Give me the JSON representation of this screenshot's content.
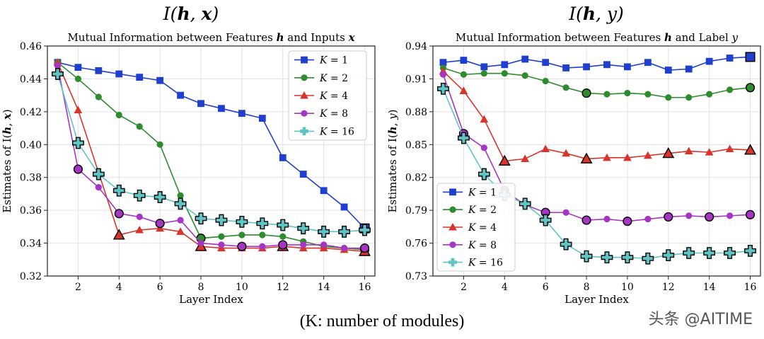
{
  "caption": "(K: number of modules)",
  "watermark": "头条 @AITIME",
  "colors": {
    "K1": "#1f3fcf",
    "K2": "#2e8b2e",
    "K4": "#d9342b",
    "K8": "#a735c4",
    "K16": "#5fc4c4"
  },
  "chart_data": [
    {
      "type": "line",
      "supertitle": "I(h, x)",
      "title": "Mutual Information between Features h and Inputs x",
      "xlabel": "Layer Index",
      "ylabel": "Estimates of I(h, x)",
      "x": [
        1,
        2,
        3,
        4,
        5,
        6,
        7,
        8,
        9,
        10,
        11,
        12,
        13,
        14,
        15,
        16
      ],
      "xticks": [
        2,
        4,
        6,
        8,
        10,
        12,
        14,
        16
      ],
      "xlim": [
        0.5,
        16.5
      ],
      "ylim": [
        0.32,
        0.46
      ],
      "yticks": [
        "0.32",
        "0.34",
        "0.36",
        "0.38",
        "0.40",
        "0.42",
        "0.44",
        "0.46"
      ],
      "grid": true,
      "legend_position": "top-right",
      "series": [
        {
          "name": "K = 1",
          "color_key": "K1",
          "marker": "square",
          "values": [
            0.45,
            0.447,
            0.445,
            0.443,
            0.441,
            0.439,
            0.43,
            0.425,
            0.422,
            0.419,
            0.416,
            0.392,
            0.382,
            0.372,
            0.362,
            0.349
          ],
          "highlight": [
            16
          ]
        },
        {
          "name": "K = 2",
          "color_key": "K2",
          "marker": "circle",
          "values": [
            0.45,
            0.44,
            0.429,
            0.418,
            0.411,
            0.4,
            0.369,
            0.343,
            0.344,
            0.345,
            0.345,
            0.344,
            0.341,
            0.338,
            0.337,
            0.336
          ],
          "highlight": [
            8,
            16
          ]
        },
        {
          "name": "K = 4",
          "color_key": "K4",
          "marker": "triangle",
          "values": [
            0.45,
            0.421,
            0.383,
            0.345,
            0.348,
            0.349,
            0.347,
            0.338,
            0.337,
            0.337,
            0.337,
            0.338,
            0.337,
            0.337,
            0.336,
            0.335
          ],
          "highlight": [
            4,
            8,
            12,
            16
          ]
        },
        {
          "name": "K = 8",
          "color_key": "K8",
          "marker": "circle",
          "values": [
            0.448,
            0.385,
            0.374,
            0.358,
            0.356,
            0.352,
            0.354,
            0.34,
            0.339,
            0.338,
            0.338,
            0.339,
            0.339,
            0.339,
            0.337,
            0.337
          ],
          "highlight": [
            2,
            4,
            6,
            10,
            12,
            16
          ]
        },
        {
          "name": "K = 16",
          "color_key": "K16",
          "marker": "plus",
          "values": [
            0.443,
            0.401,
            0.382,
            0.372,
            0.369,
            0.368,
            0.364,
            0.355,
            0.354,
            0.353,
            0.352,
            0.351,
            0.349,
            0.347,
            0.347,
            0.348
          ],
          "highlight": [
            1,
            2,
            3,
            4,
            5,
            6,
            7,
            8,
            9,
            10,
            11,
            12,
            13,
            14,
            15,
            16
          ]
        }
      ]
    },
    {
      "type": "line",
      "supertitle": "I(h, y)",
      "title": "Mutual Information between Features h and Label y",
      "xlabel": "Layer Index",
      "ylabel": "Estimates of I(h, y)",
      "x": [
        1,
        2,
        3,
        4,
        5,
        6,
        7,
        8,
        9,
        10,
        11,
        12,
        13,
        14,
        15,
        16
      ],
      "xticks": [
        2,
        4,
        6,
        8,
        10,
        12,
        14,
        16
      ],
      "xlim": [
        0.5,
        16.5
      ],
      "ylim": [
        0.73,
        0.94
      ],
      "yticks": [
        "0.73",
        "0.76",
        "0.79",
        "0.82",
        "0.85",
        "0.88",
        "0.91",
        "0.94"
      ],
      "grid": true,
      "legend_position": "bottom-left",
      "series": [
        {
          "name": "K = 1",
          "color_key": "K1",
          "marker": "square",
          "values": [
            0.925,
            0.927,
            0.921,
            0.923,
            0.928,
            0.925,
            0.92,
            0.921,
            0.923,
            0.921,
            0.925,
            0.918,
            0.919,
            0.926,
            0.929,
            0.93
          ],
          "highlight": [
            16
          ]
        },
        {
          "name": "K = 2",
          "color_key": "K2",
          "marker": "circle",
          "values": [
            0.92,
            0.914,
            0.915,
            0.915,
            0.913,
            0.908,
            0.902,
            0.897,
            0.896,
            0.897,
            0.896,
            0.893,
            0.893,
            0.896,
            0.9,
            0.902
          ],
          "highlight": [
            8,
            16
          ]
        },
        {
          "name": "K = 4",
          "color_key": "K4",
          "marker": "triangle",
          "values": [
            0.917,
            0.899,
            0.873,
            0.835,
            0.837,
            0.846,
            0.842,
            0.837,
            0.838,
            0.838,
            0.84,
            0.842,
            0.844,
            0.843,
            0.846,
            0.845
          ],
          "highlight": [
            4,
            8,
            12,
            16
          ]
        },
        {
          "name": "K = 8",
          "color_key": "K8",
          "marker": "circle",
          "values": [
            0.914,
            0.86,
            0.847,
            0.808,
            0.795,
            0.788,
            0.788,
            0.781,
            0.782,
            0.78,
            0.782,
            0.784,
            0.785,
            0.784,
            0.785,
            0.786
          ],
          "highlight": [
            2,
            4,
            6,
            8,
            10,
            12,
            14,
            16
          ]
        },
        {
          "name": "K = 16",
          "color_key": "K16",
          "marker": "plus",
          "values": [
            0.901,
            0.856,
            0.823,
            0.804,
            0.796,
            0.781,
            0.759,
            0.748,
            0.747,
            0.747,
            0.746,
            0.749,
            0.751,
            0.751,
            0.751,
            0.753
          ],
          "highlight": [
            1,
            2,
            3,
            4,
            5,
            6,
            7,
            8,
            9,
            10,
            11,
            12,
            13,
            14,
            15,
            16
          ]
        }
      ]
    }
  ]
}
